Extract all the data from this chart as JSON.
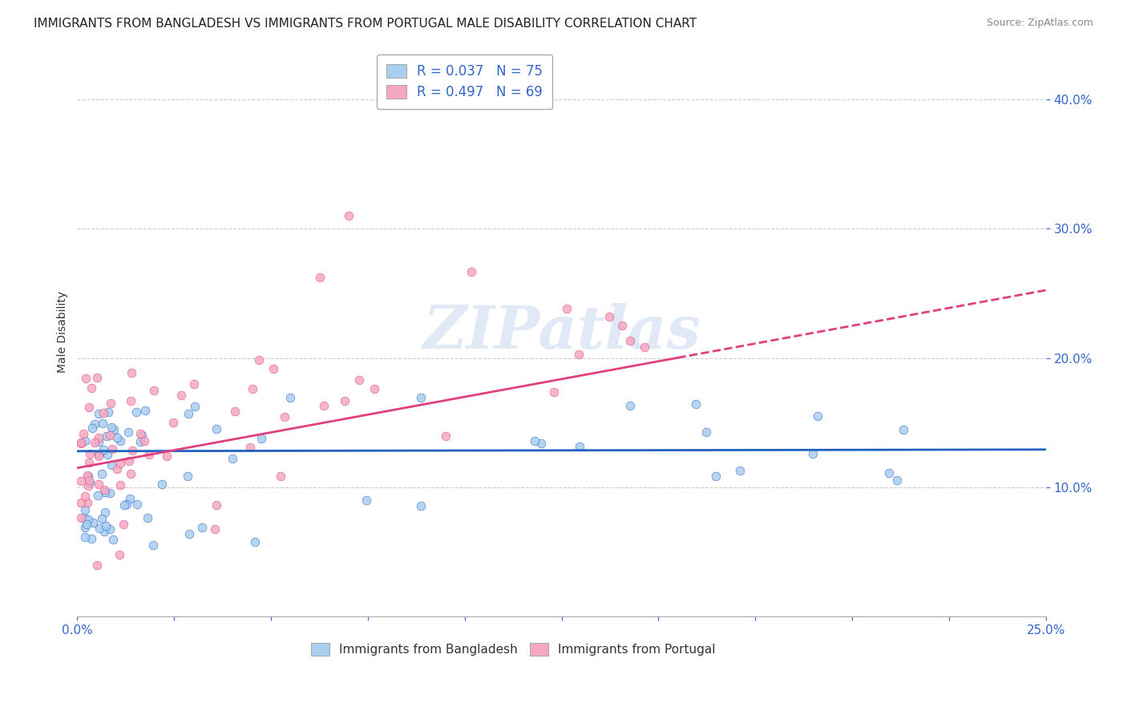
{
  "title": "IMMIGRANTS FROM BANGLADESH VS IMMIGRANTS FROM PORTUGAL MALE DISABILITY CORRELATION CHART",
  "source": "Source: ZipAtlas.com",
  "ylabel": "Male Disability",
  "legend_entry1": "R = 0.037   N = 75",
  "legend_entry2": "R = 0.497   N = 69",
  "R1": 0.037,
  "N1": 75,
  "R2": 0.497,
  "N2": 69,
  "color_bangladesh": "#a8cef0",
  "color_portugal": "#f5a8c0",
  "color_line_bangladesh": "#2060c0",
  "color_line_portugal": "#e04080",
  "watermark": "ZIPatlas",
  "xlim": [
    0.0,
    0.25
  ],
  "ylim": [
    0.0,
    0.44
  ],
  "yticks": [
    0.1,
    0.2,
    0.3,
    0.4
  ],
  "background": "#ffffff",
  "grid_color": "#cccccc",
  "title_fontsize": 11,
  "source_fontsize": 9,
  "tick_fontsize": 11
}
